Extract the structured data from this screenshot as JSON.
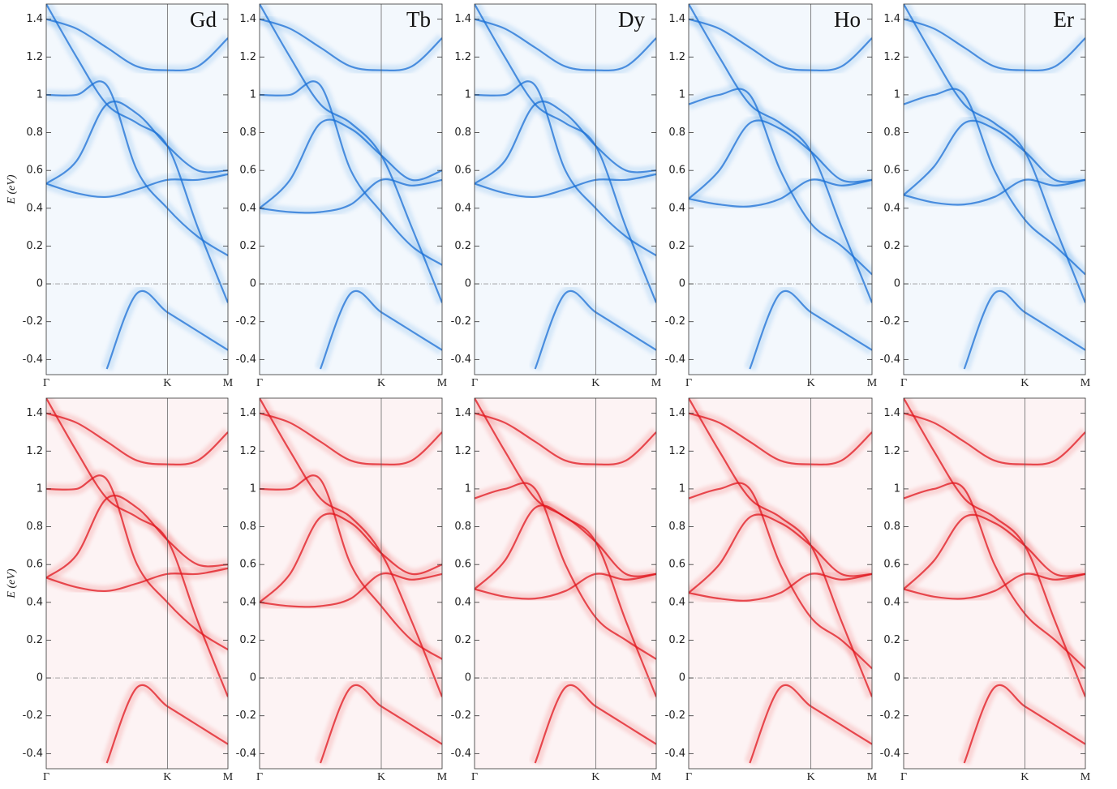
{
  "chart_data": [
    {
      "type": "line",
      "title": "Gd",
      "ylabel": "E (eV)",
      "color": "#1a6fd6",
      "x": [
        0,
        0.5,
        1,
        1.5,
        2,
        2.5,
        3
      ],
      "xlim": [
        0,
        3
      ],
      "xticks": [
        {
          "value": 0,
          "label": "Γ"
        },
        {
          "value": 2,
          "label": "K"
        },
        {
          "value": 3,
          "label": "M"
        }
      ],
      "ylim": [
        -0.48,
        1.48
      ],
      "yticks": [
        -0.4,
        -0.2,
        0,
        0.2,
        0.4,
        0.6,
        0.8,
        1,
        1.2,
        1.4
      ],
      "series": [
        {
          "values": [
            0.53,
            0.48,
            0.46,
            0.5,
            0.55,
            0.55,
            0.58
          ]
        },
        {
          "values": [
            0.53,
            0.65,
            0.95,
            0.9,
            0.73,
            0.6,
            0.6
          ]
        },
        {
          "values": [
            1.48,
            1.2,
            0.95,
            0.85,
            0.73,
            0.3,
            -0.1
          ]
        },
        {
          "values": [
            null,
            null,
            -0.45,
            -0.05,
            -0.15,
            -0.25,
            -0.35
          ]
        },
        {
          "values": [
            1.0,
            1.0,
            1.05,
            0.6,
            0.4,
            0.25,
            0.15
          ]
        },
        {
          "values": [
            1.4,
            1.35,
            1.25,
            1.15,
            1.13,
            1.15,
            1.3
          ]
        }
      ]
    },
    {
      "type": "line",
      "title": "Tb",
      "color": "#1a6fd6",
      "x": [
        0,
        0.5,
        1,
        1.5,
        2,
        2.5,
        3
      ],
      "xlim": [
        0,
        3
      ],
      "xticks": [
        {
          "value": 0,
          "label": "Γ"
        },
        {
          "value": 2,
          "label": "K"
        },
        {
          "value": 3,
          "label": "M"
        }
      ],
      "ylim": [
        -0.48,
        1.48
      ],
      "yticks": [
        -0.4,
        -0.2,
        0,
        0.2,
        0.4,
        0.6,
        0.8,
        1,
        1.2,
        1.4
      ],
      "series": [
        {
          "values": [
            0.4,
            0.38,
            0.38,
            0.42,
            0.55,
            0.52,
            0.55
          ]
        },
        {
          "values": [
            0.4,
            0.55,
            0.85,
            0.82,
            0.68,
            0.55,
            0.6
          ]
        },
        {
          "values": [
            1.48,
            1.2,
            0.95,
            0.85,
            0.68,
            0.3,
            -0.1
          ]
        },
        {
          "values": [
            null,
            null,
            -0.45,
            -0.05,
            -0.15,
            -0.25,
            -0.35
          ]
        },
        {
          "values": [
            1.0,
            1.0,
            1.05,
            0.6,
            0.38,
            0.2,
            0.1
          ]
        },
        {
          "values": [
            1.4,
            1.35,
            1.25,
            1.15,
            1.13,
            1.15,
            1.3
          ]
        }
      ]
    },
    {
      "type": "line",
      "title": "Dy",
      "color": "#1a6fd6",
      "x": [
        0,
        0.5,
        1,
        1.5,
        2,
        2.5,
        3
      ],
      "xlim": [
        0,
        3
      ],
      "xticks": [
        {
          "value": 0,
          "label": "Γ"
        },
        {
          "value": 2,
          "label": "K"
        },
        {
          "value": 3,
          "label": "M"
        }
      ],
      "ylim": [
        -0.48,
        1.48
      ],
      "yticks": [
        -0.4,
        -0.2,
        0,
        0.2,
        0.4,
        0.6,
        0.8,
        1,
        1.2,
        1.4
      ],
      "series": [
        {
          "values": [
            0.53,
            0.48,
            0.46,
            0.5,
            0.55,
            0.55,
            0.58
          ]
        },
        {
          "values": [
            0.53,
            0.65,
            0.95,
            0.9,
            0.73,
            0.6,
            0.6
          ]
        },
        {
          "values": [
            1.48,
            1.2,
            0.95,
            0.85,
            0.73,
            0.3,
            -0.1
          ]
        },
        {
          "values": [
            null,
            null,
            -0.45,
            -0.05,
            -0.15,
            -0.25,
            -0.35
          ]
        },
        {
          "values": [
            1.0,
            1.0,
            1.05,
            0.6,
            0.4,
            0.25,
            0.15
          ]
        },
        {
          "values": [
            1.4,
            1.35,
            1.25,
            1.15,
            1.13,
            1.15,
            1.3
          ]
        }
      ]
    },
    {
      "type": "line",
      "title": "Ho",
      "color": "#1a6fd6",
      "x": [
        0,
        0.5,
        1,
        1.5,
        2,
        2.5,
        3
      ],
      "xlim": [
        0,
        3
      ],
      "xticks": [
        {
          "value": 0,
          "label": "Γ"
        },
        {
          "value": 2,
          "label": "K"
        },
        {
          "value": 3,
          "label": "M"
        }
      ],
      "ylim": [
        -0.48,
        1.48
      ],
      "yticks": [
        -0.4,
        -0.2,
        0,
        0.2,
        0.4,
        0.6,
        0.8,
        1,
        1.2,
        1.4
      ],
      "series": [
        {
          "values": [
            0.45,
            0.42,
            0.41,
            0.45,
            0.55,
            0.52,
            0.55
          ]
        },
        {
          "values": [
            0.45,
            0.6,
            0.85,
            0.82,
            0.7,
            0.55,
            0.55
          ]
        },
        {
          "values": [
            1.48,
            1.2,
            0.95,
            0.85,
            0.7,
            0.3,
            -0.1
          ]
        },
        {
          "values": [
            null,
            null,
            -0.45,
            -0.05,
            -0.15,
            -0.25,
            -0.35
          ]
        },
        {
          "values": [
            0.95,
            1.0,
            1.0,
            0.6,
            0.32,
            0.2,
            0.05
          ]
        },
        {
          "values": [
            1.4,
            1.35,
            1.25,
            1.15,
            1.13,
            1.15,
            1.3
          ]
        }
      ]
    },
    {
      "type": "line",
      "title": "Er",
      "color": "#1a6fd6",
      "x": [
        0,
        0.5,
        1,
        1.5,
        2,
        2.5,
        3
      ],
      "xlim": [
        0,
        3
      ],
      "xticks": [
        {
          "value": 0,
          "label": "Γ"
        },
        {
          "value": 2,
          "label": "K"
        },
        {
          "value": 3,
          "label": "M"
        }
      ],
      "ylim": [
        -0.48,
        1.48
      ],
      "yticks": [
        -0.4,
        -0.2,
        0,
        0.2,
        0.4,
        0.6,
        0.8,
        1,
        1.2,
        1.4
      ],
      "series": [
        {
          "values": [
            0.47,
            0.43,
            0.42,
            0.46,
            0.55,
            0.52,
            0.55
          ]
        },
        {
          "values": [
            0.47,
            0.62,
            0.85,
            0.82,
            0.7,
            0.55,
            0.55
          ]
        },
        {
          "values": [
            1.48,
            1.2,
            0.95,
            0.85,
            0.7,
            0.3,
            -0.1
          ]
        },
        {
          "values": [
            null,
            null,
            -0.45,
            -0.05,
            -0.15,
            -0.25,
            -0.35
          ]
        },
        {
          "values": [
            0.95,
            1.0,
            1.0,
            0.6,
            0.34,
            0.2,
            0.05
          ]
        },
        {
          "values": [
            1.4,
            1.35,
            1.25,
            1.15,
            1.13,
            1.15,
            1.3
          ]
        }
      ]
    },
    {
      "type": "line",
      "ylabel": "E (eV)",
      "color": "#e0161e",
      "x": [
        0,
        0.5,
        1,
        1.5,
        2,
        2.5,
        3
      ],
      "xlim": [
        0,
        3
      ],
      "xticks": [
        {
          "value": 0,
          "label": "Γ"
        },
        {
          "value": 2,
          "label": "K"
        },
        {
          "value": 3,
          "label": "M"
        }
      ],
      "ylim": [
        -0.48,
        1.48
      ],
      "yticks": [
        -0.4,
        -0.2,
        0,
        0.2,
        0.4,
        0.6,
        0.8,
        1,
        1.2,
        1.4
      ],
      "series": [
        {
          "values": [
            0.53,
            0.48,
            0.46,
            0.5,
            0.55,
            0.55,
            0.58
          ]
        },
        {
          "values": [
            0.53,
            0.65,
            0.95,
            0.9,
            0.73,
            0.6,
            0.6
          ]
        },
        {
          "values": [
            1.48,
            1.2,
            0.95,
            0.85,
            0.73,
            0.3,
            -0.1
          ]
        },
        {
          "values": [
            null,
            null,
            -0.45,
            -0.05,
            -0.15,
            -0.25,
            -0.35
          ]
        },
        {
          "values": [
            1.0,
            1.0,
            1.05,
            0.6,
            0.4,
            0.25,
            0.15
          ]
        },
        {
          "values": [
            1.4,
            1.35,
            1.25,
            1.15,
            1.13,
            1.15,
            1.3
          ]
        }
      ]
    },
    {
      "type": "line",
      "color": "#e0161e",
      "x": [
        0,
        0.5,
        1,
        1.5,
        2,
        2.5,
        3
      ],
      "xlim": [
        0,
        3
      ],
      "xticks": [
        {
          "value": 0,
          "label": "Γ"
        },
        {
          "value": 2,
          "label": "K"
        },
        {
          "value": 3,
          "label": "M"
        }
      ],
      "ylim": [
        -0.48,
        1.48
      ],
      "yticks": [
        -0.4,
        -0.2,
        0,
        0.2,
        0.4,
        0.6,
        0.8,
        1,
        1.2,
        1.4
      ],
      "series": [
        {
          "values": [
            0.4,
            0.38,
            0.38,
            0.42,
            0.55,
            0.52,
            0.55
          ]
        },
        {
          "values": [
            0.4,
            0.55,
            0.85,
            0.82,
            0.66,
            0.55,
            0.6
          ]
        },
        {
          "values": [
            1.48,
            1.2,
            0.95,
            0.85,
            0.66,
            0.3,
            -0.1
          ]
        },
        {
          "values": [
            null,
            null,
            -0.45,
            -0.05,
            -0.15,
            -0.25,
            -0.35
          ]
        },
        {
          "values": [
            1.0,
            1.0,
            1.05,
            0.6,
            0.38,
            0.2,
            0.1
          ]
        },
        {
          "values": [
            1.4,
            1.35,
            1.25,
            1.15,
            1.13,
            1.15,
            1.3
          ]
        }
      ]
    },
    {
      "type": "line",
      "color": "#e0161e",
      "x": [
        0,
        0.5,
        1,
        1.5,
        2,
        2.5,
        3
      ],
      "xlim": [
        0,
        3
      ],
      "xticks": [
        {
          "value": 0,
          "label": "Γ"
        },
        {
          "value": 2,
          "label": "K"
        },
        {
          "value": 3,
          "label": "M"
        }
      ],
      "ylim": [
        -0.48,
        1.48
      ],
      "yticks": [
        -0.4,
        -0.2,
        0,
        0.2,
        0.4,
        0.6,
        0.8,
        1,
        1.2,
        1.4
      ],
      "series": [
        {
          "values": [
            0.47,
            0.43,
            0.42,
            0.46,
            0.55,
            0.52,
            0.55
          ]
        },
        {
          "values": [
            0.47,
            0.62,
            0.9,
            0.85,
            0.72,
            0.55,
            0.55
          ]
        },
        {
          "values": [
            1.48,
            1.2,
            0.95,
            0.85,
            0.72,
            0.3,
            -0.1
          ]
        },
        {
          "values": [
            null,
            null,
            -0.45,
            -0.05,
            -0.15,
            -0.25,
            -0.35
          ]
        },
        {
          "values": [
            0.95,
            1.0,
            1.0,
            0.6,
            0.32,
            0.2,
            0.1
          ]
        },
        {
          "values": [
            1.4,
            1.35,
            1.25,
            1.15,
            1.13,
            1.15,
            1.3
          ]
        }
      ]
    },
    {
      "type": "line",
      "color": "#e0161e",
      "x": [
        0,
        0.5,
        1,
        1.5,
        2,
        2.5,
        3
      ],
      "xlim": [
        0,
        3
      ],
      "xticks": [
        {
          "value": 0,
          "label": "Γ"
        },
        {
          "value": 2,
          "label": "K"
        },
        {
          "value": 3,
          "label": "M"
        }
      ],
      "ylim": [
        -0.48,
        1.48
      ],
      "yticks": [
        -0.4,
        -0.2,
        0,
        0.2,
        0.4,
        0.6,
        0.8,
        1,
        1.2,
        1.4
      ],
      "series": [
        {
          "values": [
            0.45,
            0.42,
            0.41,
            0.45,
            0.55,
            0.52,
            0.55
          ]
        },
        {
          "values": [
            0.45,
            0.6,
            0.85,
            0.82,
            0.7,
            0.55,
            0.55
          ]
        },
        {
          "values": [
            1.48,
            1.2,
            0.95,
            0.85,
            0.7,
            0.3,
            -0.1
          ]
        },
        {
          "values": [
            null,
            null,
            -0.45,
            -0.05,
            -0.15,
            -0.25,
            -0.35
          ]
        },
        {
          "values": [
            0.95,
            1.0,
            1.0,
            0.6,
            0.32,
            0.2,
            0.05
          ]
        },
        {
          "values": [
            1.4,
            1.35,
            1.25,
            1.15,
            1.13,
            1.15,
            1.3
          ]
        }
      ]
    },
    {
      "type": "line",
      "color": "#e0161e",
      "x": [
        0,
        0.5,
        1,
        1.5,
        2,
        2.5,
        3
      ],
      "xlim": [
        0,
        3
      ],
      "xticks": [
        {
          "value": 0,
          "label": "Γ"
        },
        {
          "value": 2,
          "label": "K"
        },
        {
          "value": 3,
          "label": "M"
        }
      ],
      "ylim": [
        -0.48,
        1.48
      ],
      "yticks": [
        -0.4,
        -0.2,
        0,
        0.2,
        0.4,
        0.6,
        0.8,
        1,
        1.2,
        1.4
      ],
      "series": [
        {
          "values": [
            0.47,
            0.43,
            0.42,
            0.46,
            0.55,
            0.52,
            0.55
          ]
        },
        {
          "values": [
            0.47,
            0.62,
            0.85,
            0.82,
            0.7,
            0.55,
            0.55
          ]
        },
        {
          "values": [
            1.48,
            1.2,
            0.95,
            0.85,
            0.7,
            0.3,
            -0.1
          ]
        },
        {
          "values": [
            null,
            null,
            -0.45,
            -0.05,
            -0.15,
            -0.25,
            -0.35
          ]
        },
        {
          "values": [
            0.95,
            1.0,
            1.0,
            0.6,
            0.34,
            0.2,
            0.05
          ]
        },
        {
          "values": [
            1.4,
            1.35,
            1.25,
            1.15,
            1.13,
            1.15,
            1.3
          ]
        }
      ]
    }
  ]
}
